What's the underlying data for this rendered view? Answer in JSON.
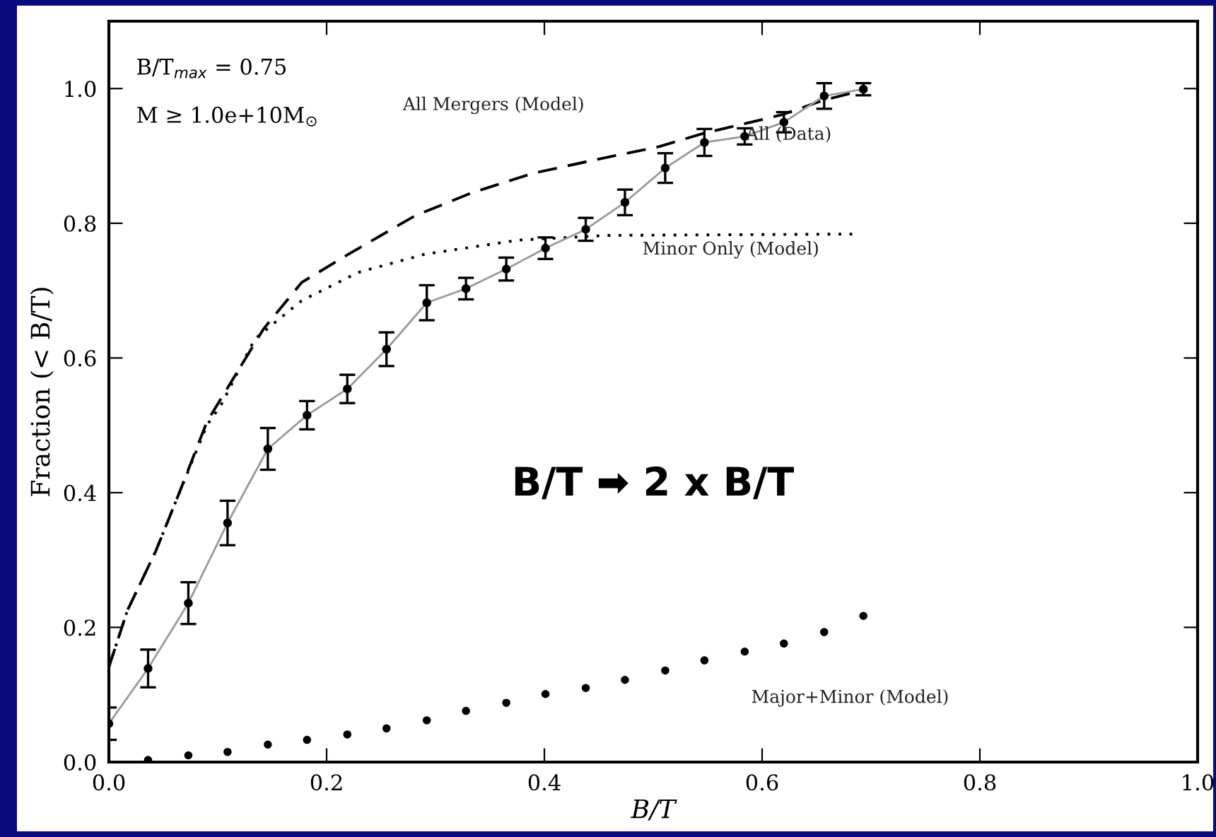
{
  "chart_data": {
    "type": "line",
    "xlabel": "B/T",
    "ylabel": "Fraction (< B/T)",
    "xlim": [
      0,
      1.0
    ],
    "ylim": [
      0,
      1.1
    ],
    "xticks": [
      {
        "value": 0,
        "label": "0.0"
      },
      0.2,
      0.4,
      0.6,
      0.8,
      {
        "value": 1.0,
        "label": "1.0"
      }
    ],
    "yticks": [
      {
        "value": 0,
        "label": "0.0"
      },
      0.2,
      0.4,
      0.6,
      0.8,
      {
        "value": 1.0,
        "label": "1.0"
      }
    ],
    "grid": false,
    "legend": false,
    "annotations": [
      "B/T$_{max}$ = 0.75",
      "M ≥ 1.0e+10M$_{⊙}$",
      "B/T ➡ 2 x B/T"
    ],
    "series": [
      {
        "name": "All Mergers (Model)",
        "line_style": "dashed",
        "marker": "none",
        "color": "#000000",
        "x": [
          0,
          0.017,
          0.043,
          0.064,
          0.09,
          0.142,
          0.177,
          0.22,
          0.281,
          0.333,
          0.389,
          0.449,
          0.506,
          0.545,
          0.618,
          0.655,
          0.696
        ],
        "values": [
          0.141,
          0.225,
          0.313,
          0.397,
          0.505,
          0.643,
          0.712,
          0.754,
          0.811,
          0.845,
          0.874,
          0.895,
          0.914,
          0.933,
          0.961,
          0.982,
          0.999
        ]
      },
      {
        "name": "Minor Only (Model)",
        "line_style": "dotted",
        "marker": "none",
        "color": "#000000",
        "x": [
          0,
          0.017,
          0.043,
          0.064,
          0.09,
          0.103,
          0.134,
          0.177,
          0.229,
          0.29,
          0.376,
          0.458,
          0.686
        ],
        "values": [
          0.141,
          0.225,
          0.313,
          0.397,
          0.5,
          0.53,
          0.628,
          0.685,
          0.727,
          0.754,
          0.775,
          0.782,
          0.784
        ]
      },
      {
        "name": "All (Data)",
        "line_style": "solid",
        "marker": "circle",
        "color": "#000000",
        "x": [
          0,
          0.036,
          0.073,
          0.109,
          0.146,
          0.182,
          0.219,
          0.255,
          0.292,
          0.328,
          0.365,
          0.401,
          0.438,
          0.474,
          0.511,
          0.547,
          0.584,
          0.62,
          0.657,
          0.693
        ],
        "values": [
          0.057,
          0.139,
          0.236,
          0.355,
          0.465,
          0.515,
          0.554,
          0.613,
          0.682,
          0.703,
          0.732,
          0.763,
          0.791,
          0.831,
          0.882,
          0.92,
          0.929,
          0.95,
          0.989,
          0.999
        ],
        "errors": [
          0.024,
          0.028,
          0.031,
          0.033,
          0.031,
          0.021,
          0.021,
          0.025,
          0.026,
          0.016,
          0.017,
          0.016,
          0.017,
          0.019,
          0.022,
          0.02,
          0.012,
          0.015,
          0.019,
          0.009
        ]
      },
      {
        "name": "Major+Minor (Model)",
        "type": "scatter",
        "marker": "circle",
        "color": "#000000",
        "x": [
          0.036,
          0.073,
          0.109,
          0.146,
          0.182,
          0.219,
          0.255,
          0.292,
          0.328,
          0.365,
          0.401,
          0.438,
          0.474,
          0.511,
          0.547,
          0.584,
          0.62,
          0.657,
          0.693
        ],
        "values": [
          0.003,
          0.01,
          0.015,
          0.026,
          0.033,
          0.041,
          0.05,
          0.062,
          0.076,
          0.088,
          0.101,
          0.11,
          0.122,
          0.136,
          0.151,
          0.164,
          0.176,
          0.193,
          0.217
        ]
      }
    ]
  }
}
